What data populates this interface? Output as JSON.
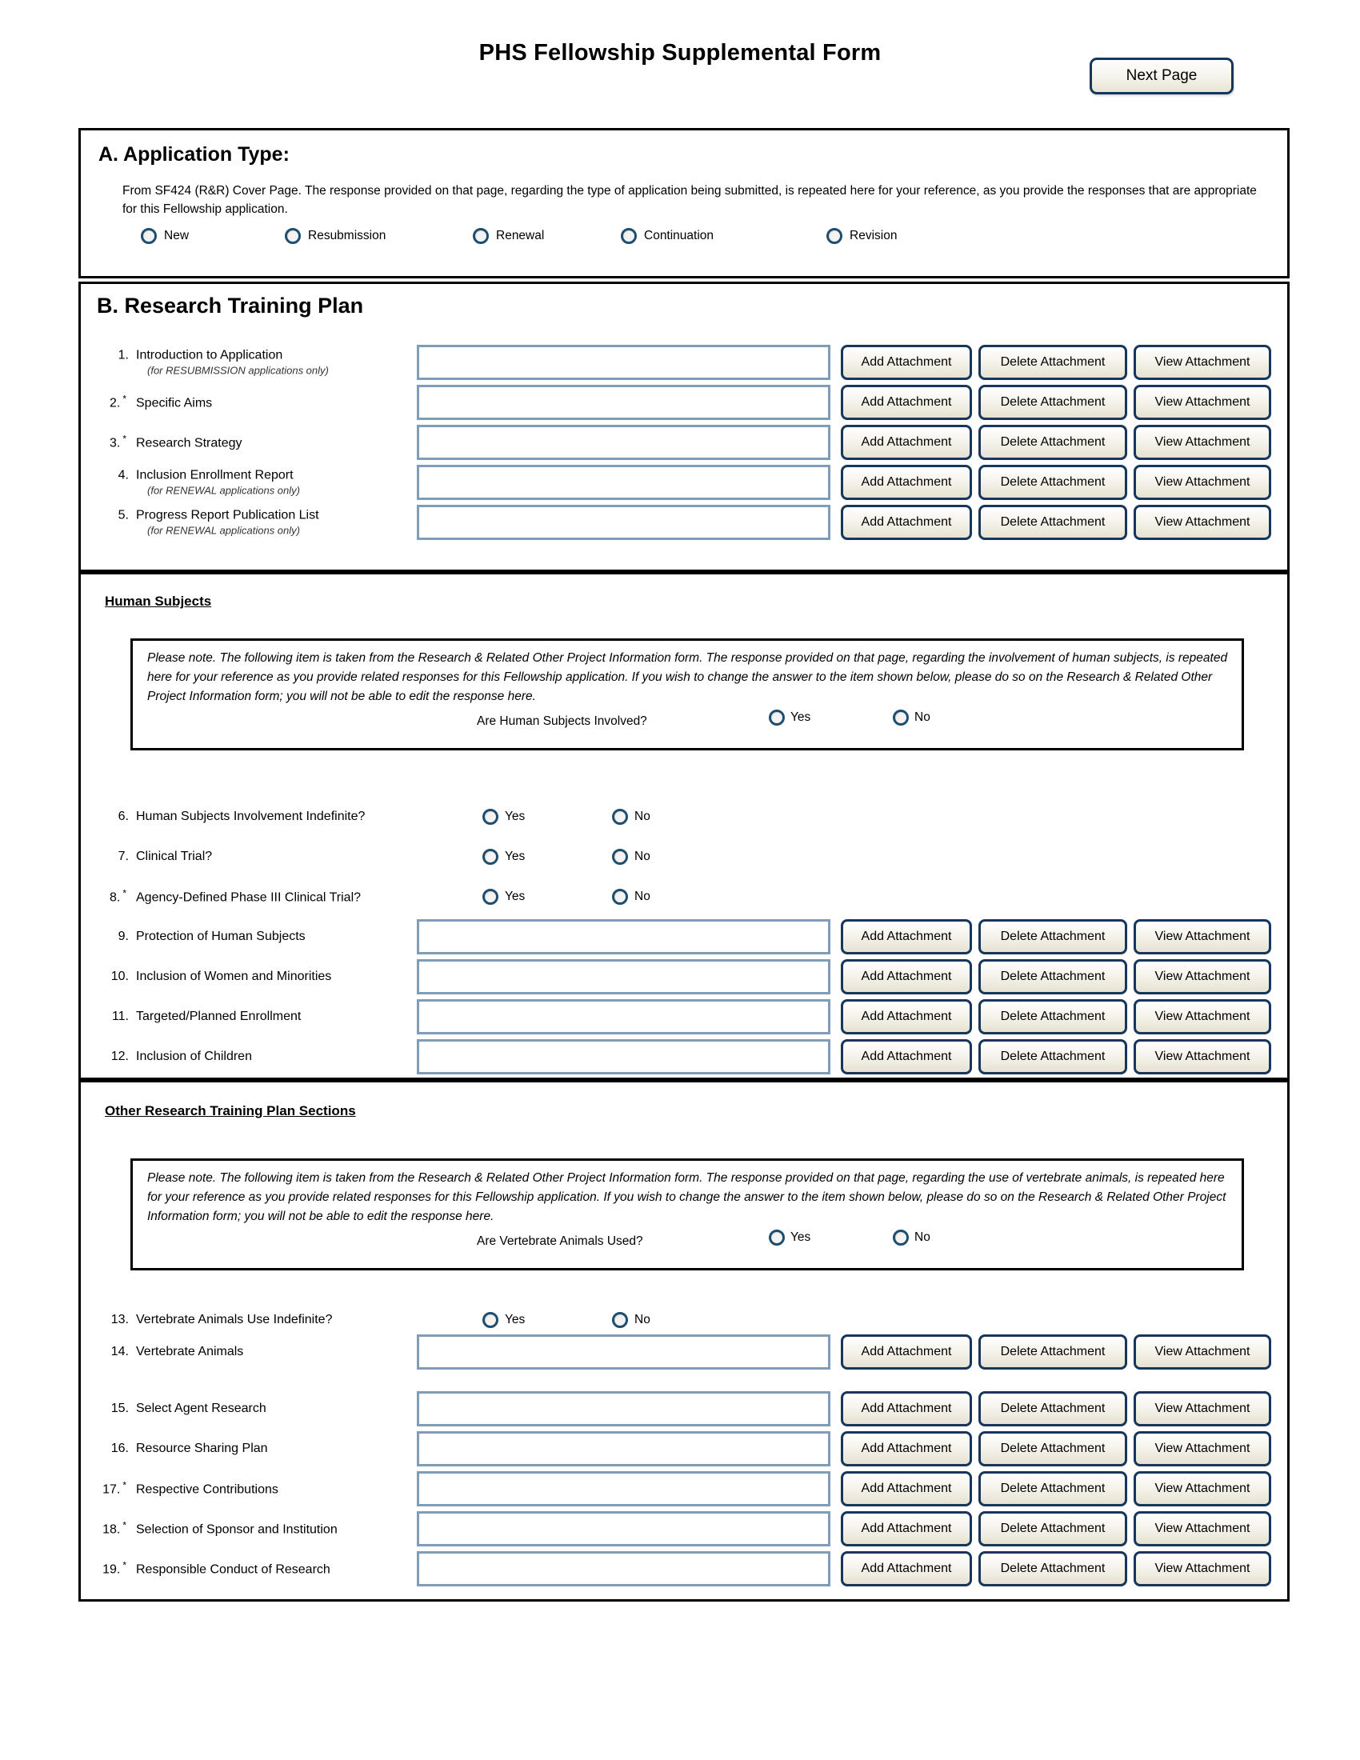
{
  "header": {
    "title": "PHS Fellowship Supplemental Form",
    "next_page_label": "Next Page"
  },
  "yes_no": {
    "yes": "Yes",
    "no": "No"
  },
  "star_symbol": "*",
  "buttons": {
    "add": "Add Attachment",
    "delete": "Delete Attachment",
    "view": "View Attachment"
  },
  "colors": {
    "accent_border": "#16365c",
    "field_border": "#7f9db9",
    "radio_ring": "#1e4e6f"
  },
  "section_a": {
    "heading": "A. Application Type:",
    "description": "From SF424 (R&R) Cover Page.  The response provided on that page, regarding the type of application being submitted, is repeated here for your reference, as you provide the responses that are appropriate for this Fellowship application.",
    "options": [
      "New",
      "Resubmission",
      "Renewal",
      "Continuation",
      "Revision"
    ]
  },
  "section_b": {
    "heading": "B. Research Training Plan",
    "attachments": [
      {
        "num": "1.",
        "label": "Introduction to Application",
        "sub": "(for RESUBMISSION applications only)"
      },
      {
        "num": "2.",
        "star": true,
        "label": "Specific Aims"
      },
      {
        "num": "3.",
        "star": true,
        "label": "Research Strategy"
      },
      {
        "num": "4.",
        "label": "Inclusion Enrollment Report",
        "sub": "(for RENEWAL applications only)"
      },
      {
        "num": "5.",
        "label": "Progress Report Publication List",
        "sub": "(for RENEWAL applications only)"
      }
    ]
  },
  "human_subjects": {
    "heading": "Human Subjects",
    "note": "Please note.  The following item is taken from the Research & Related Other Project Information form. The response provided on that page, regarding the involvement of human subjects, is repeated here for your reference as you provide related responses for this Fellowship application. If you wish to change the answer to the item shown below, please do so on the Research & Related Other Project Information form; you will not be able to edit the response here.",
    "note_question": "Are Human Subjects Involved?",
    "questions": [
      {
        "num": "6.",
        "label": "Human Subjects Involvement Indefinite?"
      },
      {
        "num": "7.",
        "label": "Clinical Trial?"
      },
      {
        "num": "8.",
        "star": true,
        "label": "Agency-Defined Phase III Clinical Trial?"
      }
    ],
    "attachments": [
      {
        "num": "9.",
        "label": "Protection of Human Subjects"
      },
      {
        "num": "10.",
        "label": "Inclusion of Women and Minorities"
      },
      {
        "num": "11.",
        "label": "Targeted/Planned Enrollment"
      },
      {
        "num": "12.",
        "label": "Inclusion of Children"
      }
    ]
  },
  "other_sections": {
    "heading": "Other Research Training Plan Sections",
    "note": "Please note.  The following item is taken from the Research & Related Other Project Information form. The response provided on that page, regarding the use of vertebrate animals, is repeated here for your reference as you provide related responses for this Fellowship application. If you wish to change the answer to the item shown below, please do so on the Research & Related Other Project Information form; you will not be able to edit the response here.",
    "note_question": "Are Vertebrate Animals Used?",
    "questions": [
      {
        "num": "13.",
        "label": "Vertebrate Animals Use Indefinite?"
      }
    ],
    "attachments_first": [
      {
        "num": "14.",
        "label": "Vertebrate Animals"
      }
    ],
    "attachments_rest": [
      {
        "num": "15.",
        "label": "Select Agent Research"
      },
      {
        "num": "16.",
        "label": "Resource Sharing Plan"
      },
      {
        "num": "17.",
        "star": true,
        "label": "Respective Contributions"
      },
      {
        "num": "18.",
        "star": true,
        "label": "Selection of Sponsor and Institution"
      },
      {
        "num": "19.",
        "star": true,
        "label": "Responsible Conduct of Research"
      }
    ]
  }
}
